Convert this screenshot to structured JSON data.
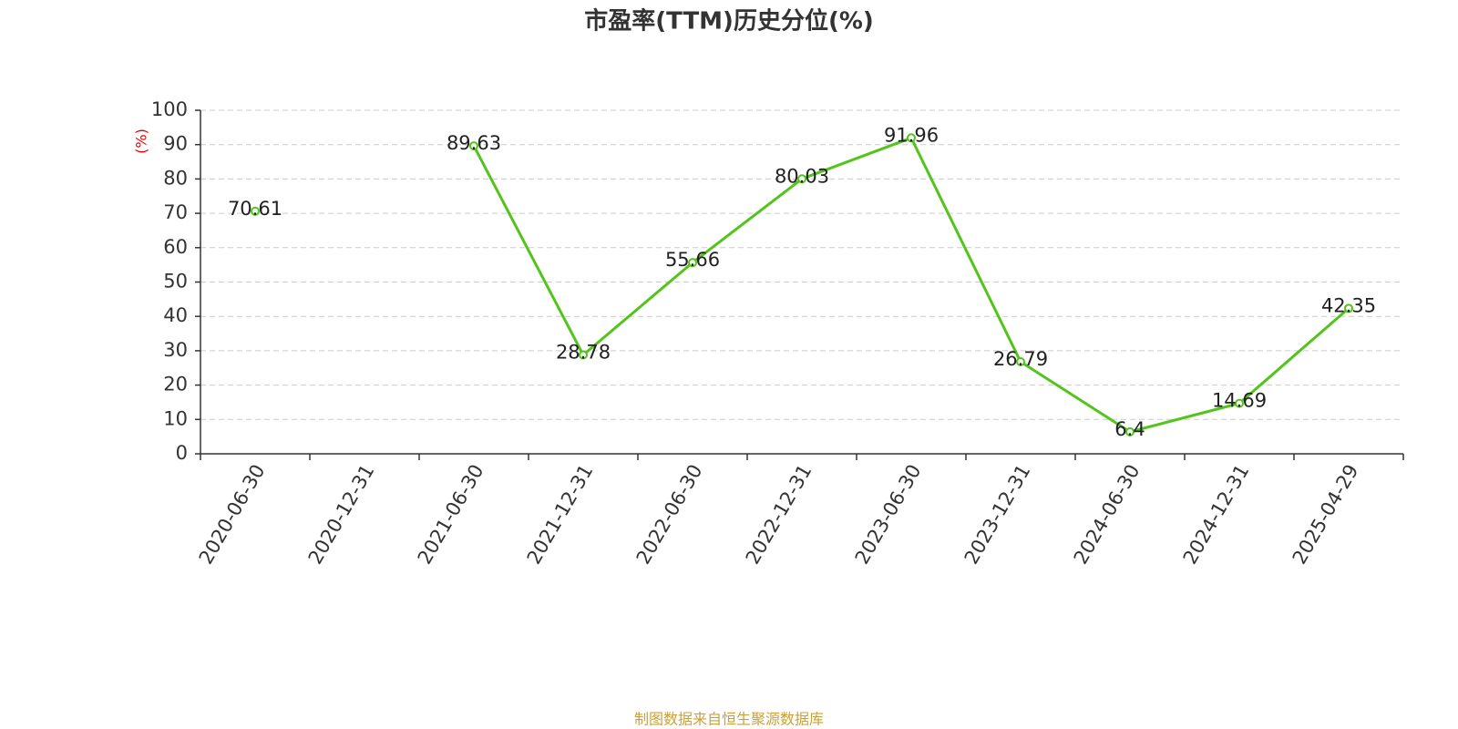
{
  "chart_data": {
    "type": "line",
    "title": "市盈率(TTM)历史分位(%)",
    "y_label": "(%)",
    "source": "制图数据来自恒生聚源数据库",
    "categories": [
      "2020-06-30",
      "2020-12-31",
      "2021-06-30",
      "2021-12-31",
      "2022-06-30",
      "2022-12-31",
      "2023-06-30",
      "2023-12-31",
      "2024-06-30",
      "2024-12-31",
      "2025-04-29"
    ],
    "values": [
      70.61,
      null,
      89.63,
      28.78,
      55.66,
      80.03,
      91.96,
      26.79,
      6.4,
      14.69,
      42.35
    ],
    "color": "#52c41a",
    "ylim": [
      0,
      100
    ],
    "yticks": [
      0,
      10,
      20,
      30,
      40,
      50,
      60,
      70,
      80,
      90,
      100
    ],
    "grid": true
  }
}
